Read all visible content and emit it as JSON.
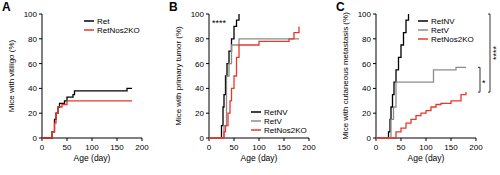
{
  "chart_data": [
    {
      "type": "line",
      "title": "A",
      "x_label": "Age (day)",
      "y_label": "Mice with vitiligo (%)",
      "xlim": [
        0,
        200
      ],
      "xticks": [
        0,
        50,
        100,
        150,
        200
      ],
      "ylim": [
        0,
        100
      ],
      "yticks": [
        0,
        20,
        40,
        60,
        80,
        100
      ],
      "grid": false,
      "legend": "upper right",
      "line_style": "step",
      "series": [
        {
          "name": "Ret",
          "color": "#000000",
          "x": [
            0,
            20,
            25,
            28,
            32,
            35,
            45,
            50,
            62,
            65,
            170,
            180
          ],
          "values": [
            0,
            5,
            15,
            20,
            25,
            28,
            30,
            33,
            35,
            38,
            40,
            40
          ]
        },
        {
          "name": "RetNos2KO",
          "color": "#e8372b",
          "x": [
            0,
            20,
            25,
            28,
            32,
            40,
            50,
            180
          ],
          "values": [
            0,
            5,
            12,
            20,
            25,
            27,
            30,
            30
          ]
        }
      ]
    },
    {
      "type": "line",
      "title": "B",
      "x_label": "Age (day)",
      "y_label": "Mice with primary tumor (%)",
      "xlim": [
        0,
        200
      ],
      "xticks": [
        0,
        50,
        100,
        150,
        200
      ],
      "ylim": [
        0,
        100
      ],
      "yticks": [
        0,
        20,
        40,
        60,
        80,
        100
      ],
      "grid": false,
      "legend": "lower right",
      "line_style": "step",
      "annotations": [
        {
          "text": "****"
        }
      ],
      "series": [
        {
          "name": "RetNV",
          "color": "#000000",
          "x": [
            0,
            25,
            28,
            30,
            33,
            36,
            40,
            45,
            50,
            55,
            60
          ],
          "values": [
            0,
            10,
            25,
            35,
            50,
            60,
            70,
            80,
            90,
            95,
            100
          ]
        },
        {
          "name": "RetV",
          "color": "#8c8c8c",
          "x": [
            0,
            30,
            35,
            40,
            45,
            60,
            180
          ],
          "values": [
            0,
            10,
            50,
            60,
            75,
            80,
            80
          ]
        },
        {
          "name": "RetNos2KO",
          "color": "#e8372b",
          "x": [
            0,
            30,
            33,
            38,
            42,
            45,
            50,
            55,
            60,
            100,
            160,
            170,
            180
          ],
          "values": [
            0,
            5,
            10,
            20,
            30,
            40,
            50,
            65,
            75,
            78,
            80,
            85,
            90
          ]
        }
      ]
    },
    {
      "type": "line",
      "title": "C",
      "x_label": "Age (day)",
      "y_label": "Mice with cutaneous metastasis (%)",
      "xlim": [
        0,
        200
      ],
      "xticks": [
        0,
        50,
        100,
        150,
        200
      ],
      "ylim": [
        0,
        100
      ],
      "yticks": [
        0,
        20,
        40,
        60,
        80,
        100
      ],
      "grid": false,
      "legend": "upper right",
      "line_style": "step",
      "annotations": [
        {
          "text": "****",
          "between": [
            "RetNV",
            "RetNos2KO"
          ]
        },
        {
          "text": "*",
          "between": [
            "RetV",
            "RetNos2KO"
          ]
        }
      ],
      "series": [
        {
          "name": "RetNV",
          "color": "#000000",
          "x": [
            0,
            25,
            28,
            30,
            33,
            36,
            40,
            45,
            50,
            55,
            60,
            65
          ],
          "values": [
            0,
            5,
            15,
            25,
            35,
            45,
            55,
            65,
            75,
            85,
            95,
            100
          ]
        },
        {
          "name": "RetV",
          "color": "#8c8c8c",
          "x": [
            0,
            30,
            35,
            40,
            60,
            110,
            115,
            160,
            180
          ],
          "values": [
            0,
            15,
            25,
            45,
            45,
            45,
            55,
            57,
            57
          ]
        },
        {
          "name": "RetNos2KO",
          "color": "#e8372b",
          "x": [
            0,
            40,
            50,
            60,
            70,
            80,
            90,
            100,
            110,
            120,
            130,
            150,
            170,
            180
          ],
          "values": [
            0,
            5,
            8,
            12,
            15,
            18,
            20,
            22,
            25,
            27,
            28,
            30,
            35,
            37
          ]
        }
      ]
    }
  ]
}
